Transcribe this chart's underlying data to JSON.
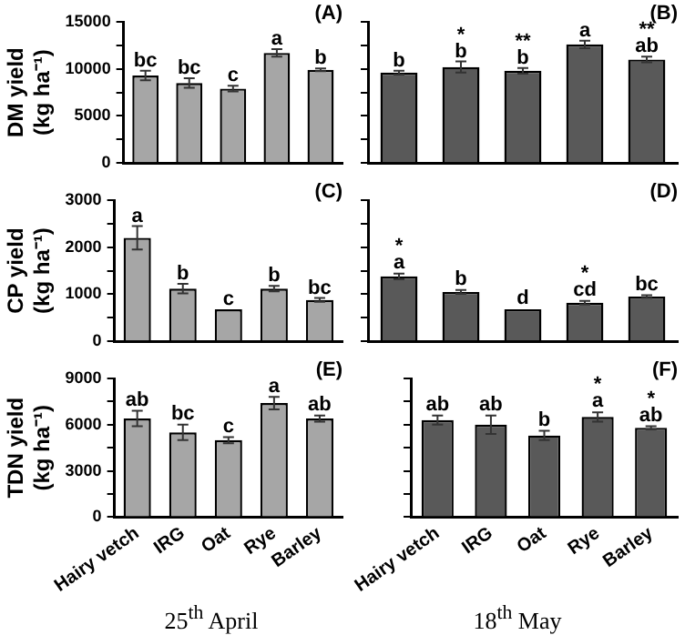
{
  "chart_data": [
    {
      "type": "bar",
      "ylabel": "DM yield\n(kg ha⁻¹)",
      "categories": [
        "Hairy vetch",
        "IRG",
        "Oat",
        "Rye",
        "Barley"
      ],
      "values": [
        9300,
        8500,
        7900,
        11700,
        9900
      ],
      "errors": [
        500,
        500,
        300,
        400,
        150
      ],
      "color": "#a6a6a6",
      "ylim": [
        0,
        15000
      ],
      "yticks": [
        0,
        {
          "value": 2500,
          "label": null
        },
        5000,
        {
          "value": 7500,
          "label": null
        },
        10000,
        {
          "value": 12500,
          "label": null
        },
        15000
      ],
      "grid": false,
      "tick_labels": "y",
      "annotations": [
        "(A)",
        {
          "text": "bc",
          "x": "Hairy vetch",
          "y": 9800
        },
        {
          "text": "bc",
          "x": "IRG",
          "y": 9000
        },
        {
          "text": "c",
          "x": "Oat",
          "y": 8200
        },
        {
          "text": "a",
          "x": "Rye",
          "y": 12100
        },
        {
          "text": "b",
          "x": "Barley",
          "y": 10050
        }
      ]
    },
    {
      "type": "bar",
      "categories": [
        "Hairy vetch",
        "IRG",
        "Oat",
        "Rye",
        "Barley"
      ],
      "values": [
        9600,
        10200,
        9800,
        12600,
        11000
      ],
      "errors": [
        200,
        600,
        300,
        400,
        300
      ],
      "color": "#595959",
      "ylim": [
        0,
        15000
      ],
      "yticks": [
        0,
        {
          "value": 2500,
          "label": null
        },
        {
          "value": 5000,
          "label": null
        },
        {
          "value": 7500,
          "label": null
        },
        {
          "value": 10000,
          "label": null
        },
        {
          "value": 12500,
          "label": null
        },
        {
          "value": 15000,
          "label": null
        }
      ],
      "grid": false,
      "tick_labels": false,
      "annotations": [
        "(B)",
        {
          "text": "b",
          "x": "Hairy vetch",
          "y": 9800
        },
        {
          "text": "*\nb",
          "x": "IRG",
          "y": 10800
        },
        {
          "text": "**\nb",
          "x": "Oat",
          "y": 10100
        },
        {
          "text": "a",
          "x": "Rye",
          "y": 13000
        },
        {
          "text": "**\nab",
          "x": "Barley",
          "y": 11300
        }
      ]
    },
    {
      "type": "bar",
      "ylabel": "CP yield\n(kg ha⁻¹)",
      "categories": [
        "Hairy vetch",
        "IRG",
        "Oat",
        "Rye",
        "Barley"
      ],
      "values": [
        2200,
        1120,
        680,
        1120,
        880
      ],
      "errors": [
        250,
        100,
        null,
        60,
        40
      ],
      "color": "#a6a6a6",
      "ylim": [
        0,
        3000
      ],
      "yticks": [
        0,
        {
          "value": 500,
          "label": null
        },
        1000,
        {
          "value": 1500,
          "label": null
        },
        2000,
        {
          "value": 2500,
          "label": null
        },
        3000
      ],
      "grid": false,
      "tick_labels": "y",
      "annotations": [
        "(C)",
        {
          "text": "a",
          "x": "Hairy vetch",
          "y": 2450
        },
        {
          "text": "b",
          "x": "IRG",
          "y": 1220
        },
        {
          "text": "c",
          "x": "Oat",
          "y": 690
        },
        {
          "text": "b",
          "x": "Rye",
          "y": 1180
        },
        {
          "text": "bc",
          "x": "Barley",
          "y": 920
        }
      ]
    },
    {
      "type": "bar",
      "categories": [
        "Hairy vetch",
        "IRG",
        "Oat",
        "Rye",
        "Barley"
      ],
      "values": [
        1380,
        1050,
        680,
        820,
        950
      ],
      "errors": [
        60,
        40,
        null,
        40,
        30
      ],
      "color": "#595959",
      "ylim": [
        0,
        3000
      ],
      "yticks": [
        0,
        {
          "value": 500,
          "label": null
        },
        {
          "value": 1000,
          "label": null
        },
        {
          "value": 1500,
          "label": null
        },
        {
          "value": 2000,
          "label": null
        },
        {
          "value": 2500,
          "label": null
        },
        {
          "value": 3000,
          "label": null
        }
      ],
      "grid": false,
      "tick_labels": false,
      "annotations": [
        "(D)",
        {
          "text": "*\na",
          "x": "Hairy vetch",
          "y": 1450
        },
        {
          "text": "b",
          "x": "IRG",
          "y": 1100
        },
        {
          "text": "d",
          "x": "Oat",
          "y": 700
        },
        {
          "text": "*\ncd",
          "x": "Rye",
          "y": 870
        },
        {
          "text": "bc",
          "x": "Barley",
          "y": 990
        }
      ]
    },
    {
      "type": "bar",
      "ylabel": "TDN yield\n(kg ha⁻¹)",
      "xlabel": "25$^{th}$ April",
      "categories": [
        "Hairy vetch",
        "IRG",
        "Oat",
        "Rye",
        "Barley"
      ],
      "values": [
        6400,
        5500,
        5000,
        7400,
        6400
      ],
      "errors": [
        500,
        500,
        200,
        400,
        200
      ],
      "color": "#a6a6a6",
      "ylim": [
        0,
        9000
      ],
      "yticks": [
        0,
        {
          "value": 1500,
          "label": null
        },
        3000,
        {
          "value": 4500,
          "label": null
        },
        6000,
        {
          "value": 7500,
          "label": null
        },
        9000
      ],
      "grid": false,
      "annotations": [
        "(E)",
        {
          "text": "ab",
          "x": "Hairy vetch",
          "y": 6950
        },
        {
          "text": "bc",
          "x": "IRG",
          "y": 6050
        },
        {
          "text": "c",
          "x": "Oat",
          "y": 5250
        },
        {
          "text": "a",
          "x": "Rye",
          "y": 7850
        },
        {
          "text": "ab",
          "x": "Barley",
          "y": 6650
        }
      ]
    },
    {
      "type": "bar",
      "xlabel": "18$^{th}$ May",
      "categories": [
        "Hairy vetch",
        "IRG",
        "Oat",
        "Rye",
        "Barley"
      ],
      "values": [
        6300,
        6000,
        5300,
        6500,
        5800
      ],
      "errors": [
        300,
        600,
        300,
        300,
        100
      ],
      "color": "#595959",
      "ylim": [
        0,
        9000
      ],
      "yticks": [
        0,
        {
          "value": 1500,
          "label": null
        },
        {
          "value": 3000,
          "label": null
        },
        {
          "value": 4500,
          "label": null
        },
        {
          "value": 6000,
          "label": null
        },
        {
          "value": 7500,
          "label": null
        },
        {
          "value": 9000,
          "label": null
        }
      ],
      "grid": false,
      "tick_labels": "x",
      "annotations": [
        "(F)",
        {
          "text": "ab",
          "x": "Hairy vetch",
          "y": 6650
        },
        {
          "text": "ab",
          "x": "IRG",
          "y": 6650
        },
        {
          "text": "b",
          "x": "Oat",
          "y": 5650
        },
        {
          "text": "*\na",
          "x": "Rye",
          "y": 6850
        },
        {
          "text": "*\nab",
          "x": "Barley",
          "y": 5950
        }
      ]
    }
  ]
}
